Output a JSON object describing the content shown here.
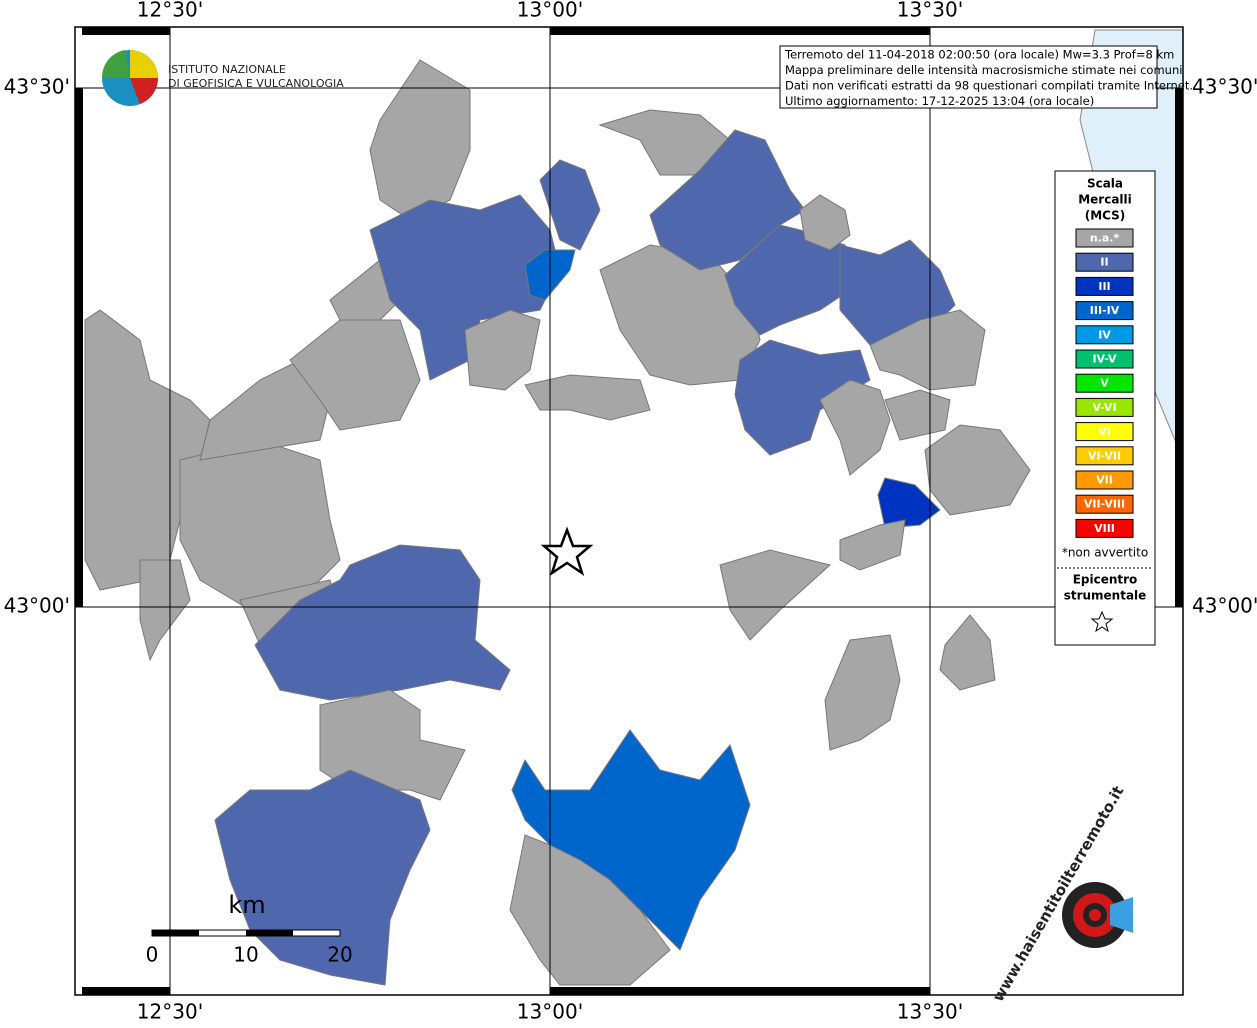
{
  "coords": {
    "top": [
      "12°30'",
      "13°00'",
      "13°30'"
    ],
    "bottom": [
      "12°30'",
      "13°00'",
      "13°30'"
    ],
    "left": [
      "43°30'",
      "43°00'"
    ],
    "right": [
      "43°30'",
      "43°00'"
    ]
  },
  "logo": {
    "line1": "ISTITUTO NAZIONALE",
    "line2": "DI GEOFISICA E VULCANOLOGIA"
  },
  "info": [
    "Terremoto del 11-04-2018 02:00:50 (ora locale) Mw=3.3 Prof=8 km",
    "Mappa preliminare delle intensità macrosismiche stimate nei comuni",
    "Dati non verificati estratti da 98 questionari compilati tramite Internet.",
    "Ultimo aggiornamento: 17-12-2025 13:04 (ora locale)"
  ],
  "legend": {
    "title": [
      "Scala",
      "Mercalli",
      "(MCS)"
    ],
    "items": [
      {
        "label": "n.a.*",
        "color": "#a6a6a6"
      },
      {
        "label": "II",
        "color": "#4f68ad"
      },
      {
        "label": "III",
        "color": "#0033c0"
      },
      {
        "label": "III-IV",
        "color": "#0066cc"
      },
      {
        "label": "IV",
        "color": "#0099e6"
      },
      {
        "label": "IV-V",
        "color": "#00c070"
      },
      {
        "label": "V",
        "color": "#00e600"
      },
      {
        "label": "V-VI",
        "color": "#99e600"
      },
      {
        "label": "VI",
        "color": "#ffff00"
      },
      {
        "label": "VI-VII",
        "color": "#ffcc00"
      },
      {
        "label": "VII",
        "color": "#ff9900"
      },
      {
        "label": "VII-VIII",
        "color": "#ff6600"
      },
      {
        "label": "VIII",
        "color": "#ff0000"
      }
    ],
    "note": "*non avvertito",
    "epicenter": [
      "Epicentro",
      "strumentale"
    ]
  },
  "scale": {
    "unit": "km",
    "ticks": [
      "0",
      "10",
      "20"
    ]
  },
  "watermark": "www.haisentitoilterremoto.it"
}
